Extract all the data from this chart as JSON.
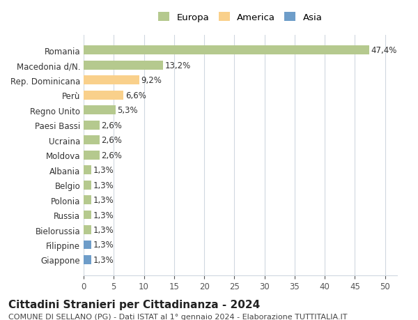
{
  "countries": [
    "Romania",
    "Macedonia d/N.",
    "Rep. Dominicana",
    "Perù",
    "Regno Unito",
    "Paesi Bassi",
    "Ucraina",
    "Moldova",
    "Albania",
    "Belgio",
    "Polonia",
    "Russia",
    "Bielorussia",
    "Filippine",
    "Giappone"
  ],
  "values": [
    47.4,
    13.2,
    9.2,
    6.6,
    5.3,
    2.6,
    2.6,
    2.6,
    1.3,
    1.3,
    1.3,
    1.3,
    1.3,
    1.3,
    1.3
  ],
  "labels": [
    "47,4%",
    "13,2%",
    "9,2%",
    "6,6%",
    "5,3%",
    "2,6%",
    "2,6%",
    "2,6%",
    "1,3%",
    "1,3%",
    "1,3%",
    "1,3%",
    "1,3%",
    "1,3%",
    "1,3%"
  ],
  "continents": [
    "Europa",
    "Europa",
    "America",
    "America",
    "Europa",
    "Europa",
    "Europa",
    "Europa",
    "Europa",
    "Europa",
    "Europa",
    "Europa",
    "Europa",
    "Asia",
    "Asia"
  ],
  "colors": {
    "Europa": "#b5c98e",
    "America": "#f9d08b",
    "Asia": "#6e9dc9"
  },
  "legend": [
    "Europa",
    "America",
    "Asia"
  ],
  "legend_colors": [
    "#b5c98e",
    "#f9d08b",
    "#6e9dc9"
  ],
  "xlim": [
    0,
    52
  ],
  "xticks": [
    0,
    5,
    10,
    15,
    20,
    25,
    30,
    35,
    40,
    45,
    50
  ],
  "title": "Cittadini Stranieri per Cittadinanza - 2024",
  "subtitle": "COMUNE DI SELLANO (PG) - Dati ISTAT al 1° gennaio 2024 - Elaborazione TUTTITALIA.IT",
  "bg_color": "#ffffff",
  "grid_color": "#d0d8e0",
  "label_fontsize": 8.5,
  "bar_label_fontsize": 8.5,
  "title_fontsize": 11,
  "subtitle_fontsize": 8
}
